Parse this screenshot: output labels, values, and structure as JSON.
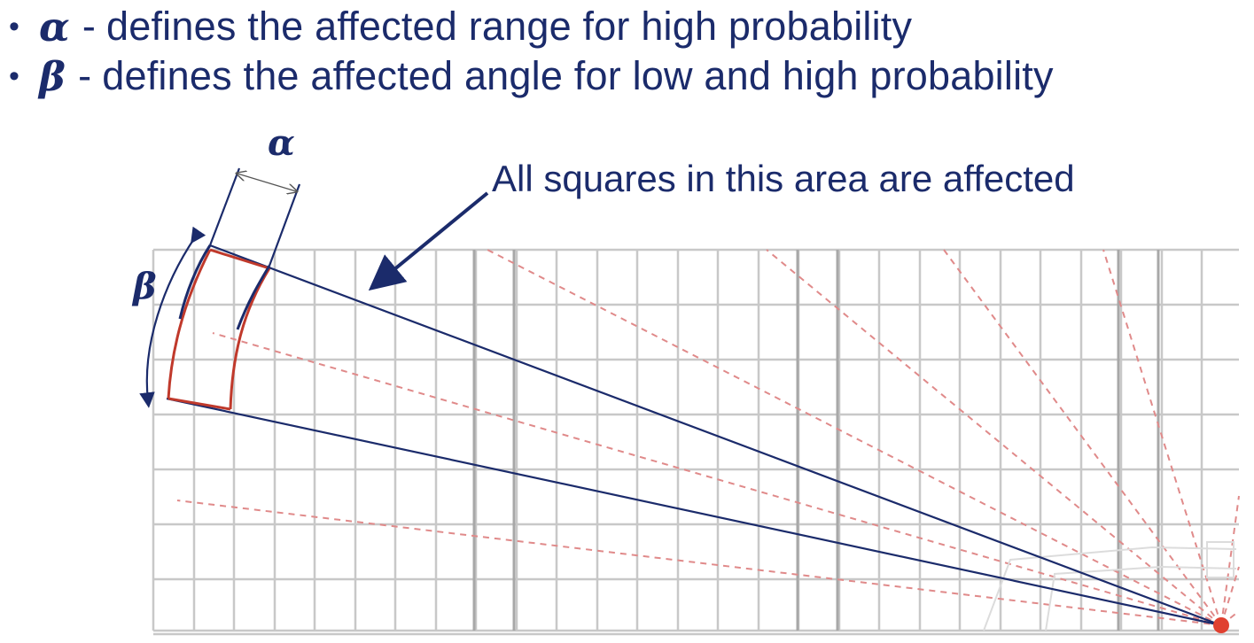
{
  "bullets": [
    {
      "symbol": "α",
      "separator": "-",
      "text": "defines the affected range for high probability"
    },
    {
      "symbol": "β",
      "separator": "-",
      "text": "defines the affected angle for low and high probability"
    }
  ],
  "diagram": {
    "alpha_label": "α",
    "beta_label": "β",
    "callout": "All squares in this area are affected"
  },
  "colors": {
    "text": "#1b2b6b",
    "outline": "#1b2b6b",
    "highlight": "#c0392b",
    "grid": "#c8c8c8",
    "dashed_rays": "#e08a8a"
  }
}
